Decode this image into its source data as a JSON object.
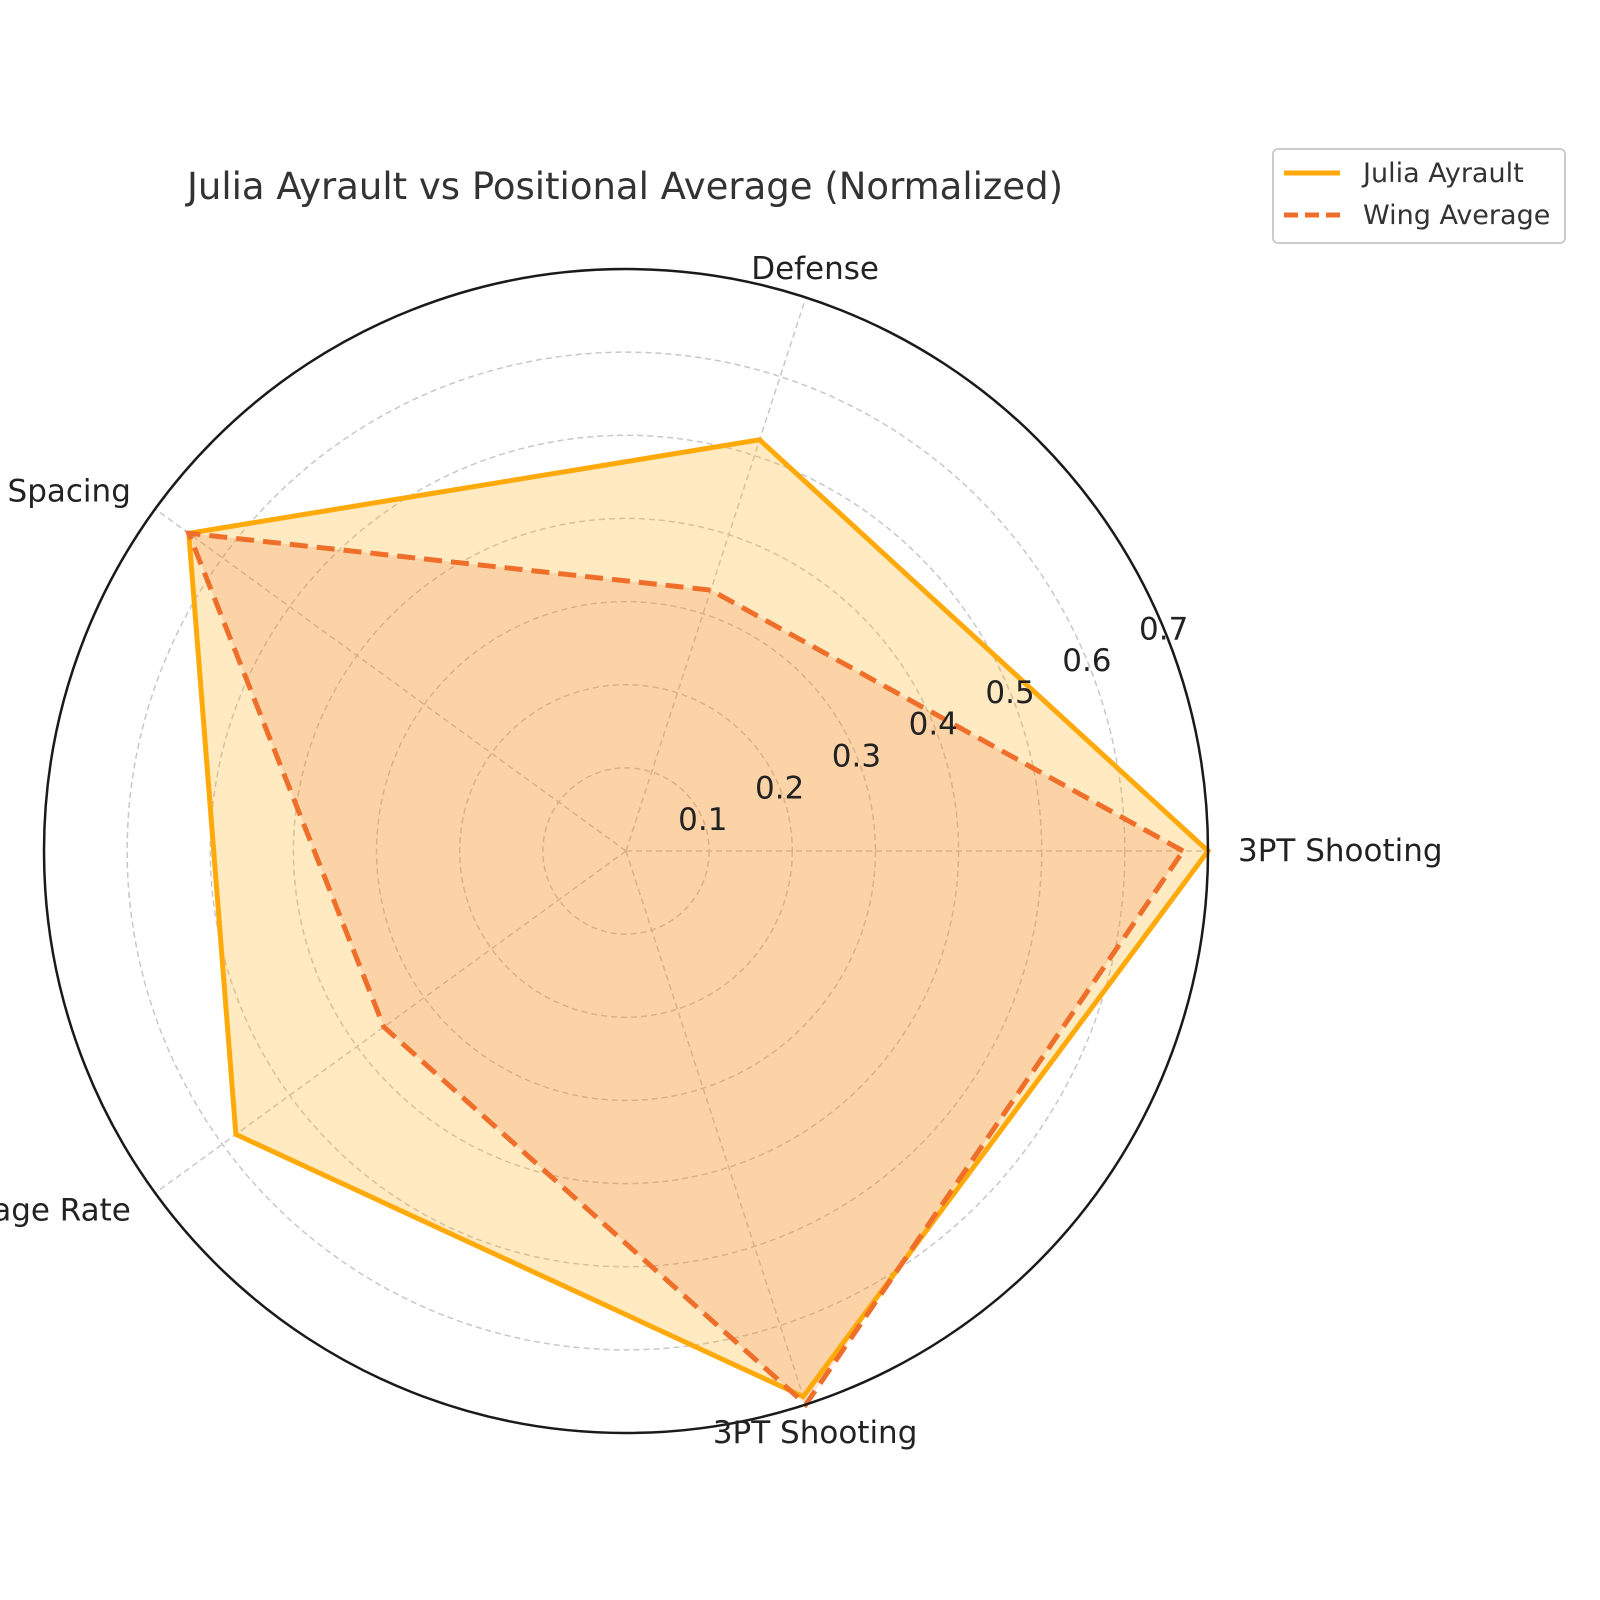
{
  "chart_data": {
    "type": "radar",
    "title": "Julia Ayrault vs Positional Average (Normalized)",
    "categories": [
      "3PT Shooting",
      "Defense",
      "Spacing",
      "Usage Rate",
      "3PT Shooting"
    ],
    "series": [
      {
        "name": "Julia Ayrault",
        "values": [
          0.7,
          0.52,
          0.65,
          0.58,
          0.69
        ],
        "color": "#FFAA0A",
        "line_style": "solid"
      },
      {
        "name": "Wing Average",
        "values": [
          0.67,
          0.33,
          0.65,
          0.36,
          0.7
        ],
        "color": "#EF6F2A",
        "line_style": "dashed"
      }
    ],
    "rlim": [
      0,
      0.7
    ],
    "r_ticks": [
      0.1,
      0.2,
      0.3,
      0.4,
      0.5,
      0.6,
      0.7
    ],
    "r_tick_labels": [
      "0.1",
      "0.2",
      "0.3",
      "0.4",
      "0.5",
      "0.6",
      "0.7"
    ],
    "grid": true,
    "legend_position": "top-right"
  }
}
